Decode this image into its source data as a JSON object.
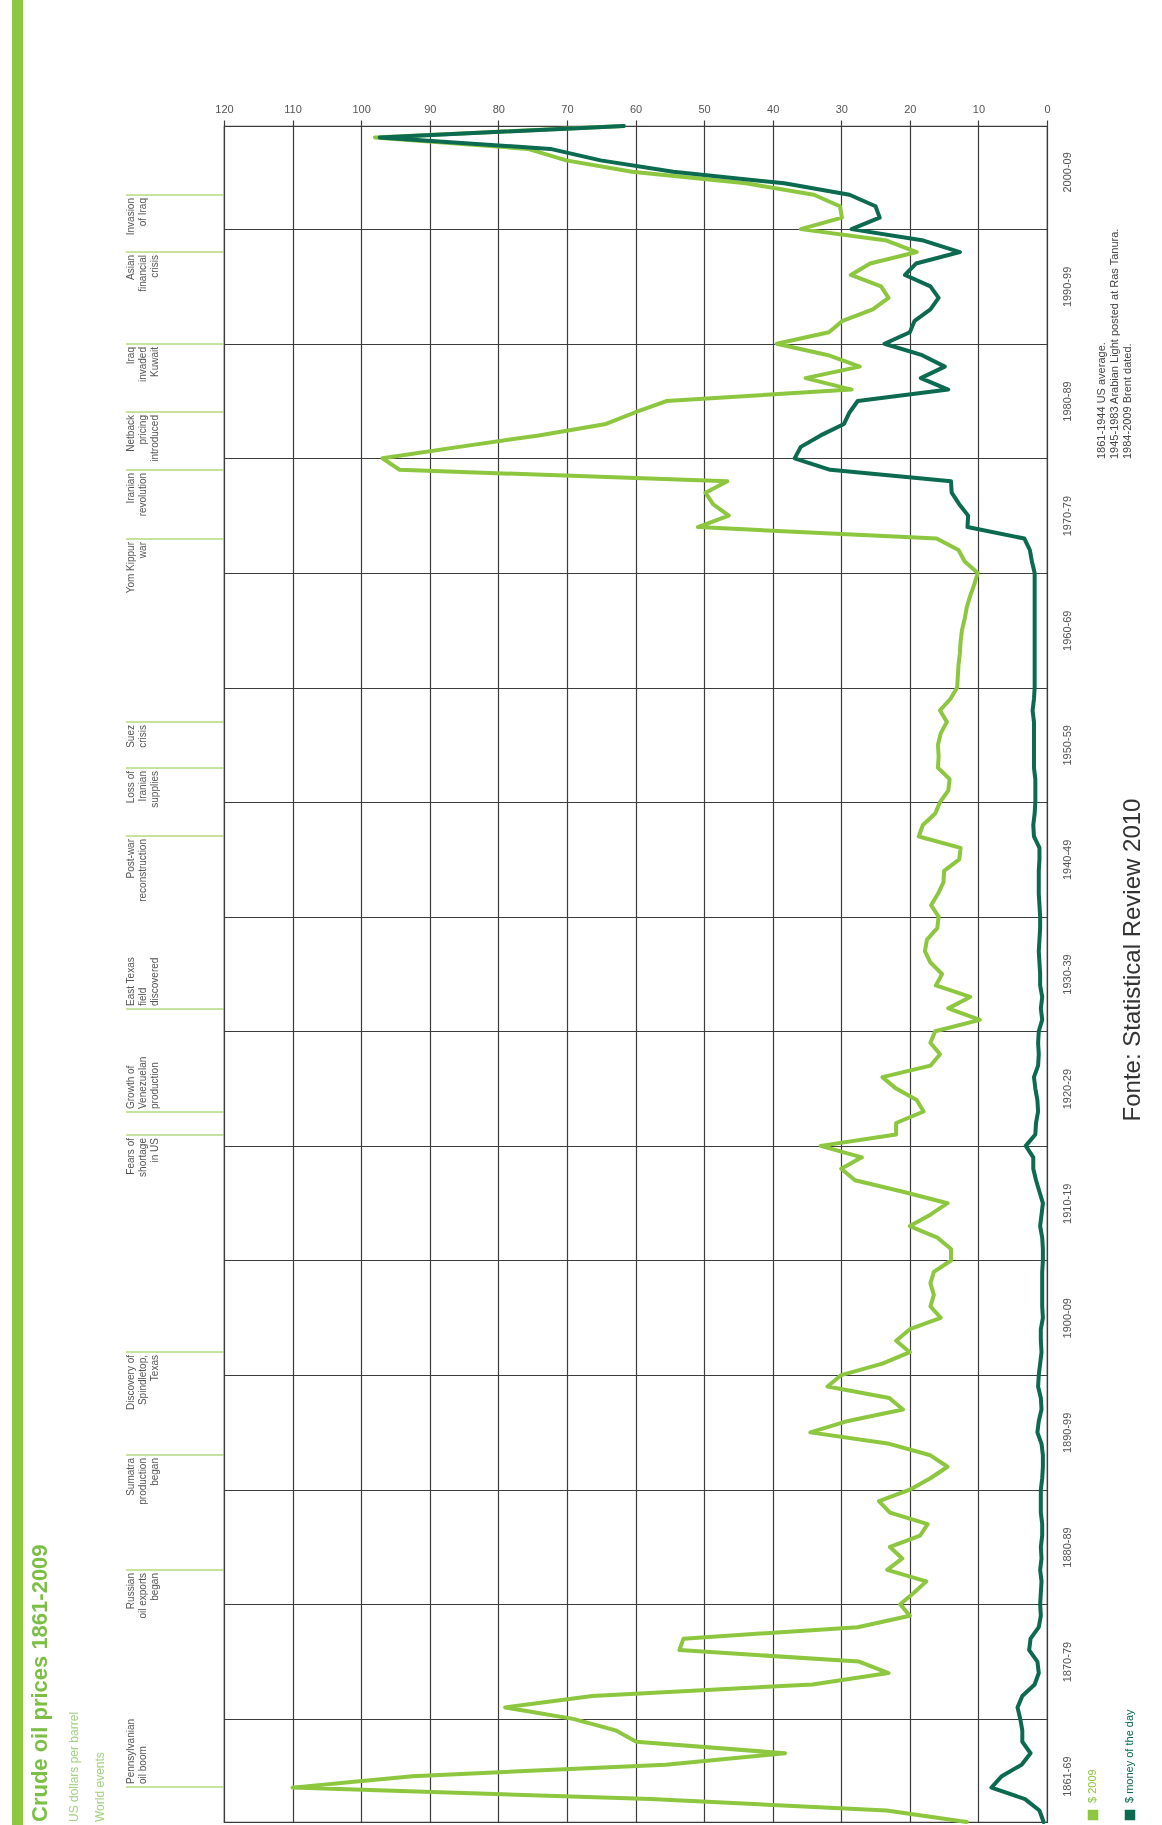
{
  "chart_data": {
    "type": "line",
    "title": "Crude oil prices 1861-2009",
    "subtitle": "US dollars per barrel",
    "orientation": "horizontal",
    "categories": [
      null,
      null,
      null,
      null,
      "2000-09",
      null,
      null,
      null,
      null,
      null,
      null,
      null,
      null,
      null,
      "1990-99",
      null,
      null,
      null,
      null,
      null,
      null,
      null,
      null,
      null,
      "1980-89",
      null,
      null,
      null,
      null,
      null,
      null,
      null,
      null,
      null,
      "1970-79",
      null,
      null,
      null,
      null,
      null,
      null,
      null,
      null,
      null,
      "1960-69",
      null,
      null,
      null,
      null,
      null,
      null,
      null,
      null,
      null,
      "1950-59",
      null,
      null,
      null,
      null,
      null,
      null,
      null,
      null,
      null,
      "1940-49",
      null,
      null,
      null,
      null,
      null,
      null,
      null,
      null,
      null,
      "1930-39",
      null,
      null,
      null,
      null,
      null,
      null,
      null,
      null,
      null,
      "1920-29",
      null,
      null,
      null,
      null,
      null,
      null,
      null,
      null,
      null,
      "1910-19",
      null,
      null,
      null,
      null,
      null,
      null,
      null,
      null,
      null,
      "1900-09",
      null,
      null,
      null,
      null,
      null,
      null,
      null,
      null,
      null,
      "1890-99",
      null,
      null,
      null,
      null,
      null,
      null,
      null,
      null,
      null,
      "1880-89",
      null,
      null,
      null,
      null,
      null,
      null,
      null,
      null,
      null,
      "1870-79",
      null,
      null,
      null,
      null,
      null,
      null,
      null,
      null,
      null,
      "1861-69",
      null,
      null,
      null,
      null
    ],
    "series": [
      {
        "name": "$ 2009",
        "color": "#8dc63f",
        "values": [
          61.7,
          98,
          75.7,
          70.1,
          60.5,
          43.9,
          34,
          30.2,
          29.9,
          35.9,
          23.4,
          19,
          25.8,
          28.6,
          24.2,
          23.1,
          25.4,
          29.8,
          31.8,
          39.4,
          31.9,
          27.3,
          35.2,
          28.5,
          55.5,
          60.1,
          64.3,
          74.1,
          85.7,
          96.9,
          94.4,
          46.6,
          49.8,
          48.7,
          46.4,
          50.9,
          16.1,
          12.9,
          12,
          10.1,
          10.6,
          11.2,
          11.7,
          12,
          12.4,
          12.6,
          12.7,
          12.9,
          13,
          13.1,
          14.1,
          15.6,
          14.6,
          15.5,
          15.9,
          15.8,
          15.9,
          14.2,
          14.4,
          15.6,
          16.3,
          18.1,
          18.7,
          12.6,
          12.8,
          15,
          15.1,
          15.9,
          16.9,
          15.8,
          16,
          17.5,
          17.8,
          17,
          15.3,
          16.2,
          11.2,
          14.4,
          9.8,
          16.3,
          17,
          15.6,
          17,
          24,
          22,
          19,
          18,
          22,
          22,
          33,
          27,
          30,
          28,
          21,
          14.5,
          17,
          20,
          16,
          14,
          14,
          16.5,
          17,
          16.5,
          17,
          15.5,
          20,
          22,
          20,
          24,
          30,
          32,
          23,
          21,
          29,
          34.5,
          23,
          17,
          14.5,
          17,
          20,
          24.5,
          22.9,
          17.4,
          18.5,
          22.9,
          21.1,
          23.3,
          17.6,
          19.4,
          21.4,
          20.0,
          27.6,
          53.0,
          53.6,
          27.4,
          23.1,
          34.2,
          66.3,
          79.0,
          69.1,
          62.9,
          59.9,
          38.2,
          55.6,
          92.5,
          110,
          57.8,
          23.4,
          11.7
        ]
      },
      {
        "name": "$ money of the day",
        "color": "#0b6a50",
        "values": [
          61.7,
          97.3,
          72.4,
          65.1,
          54.5,
          38.3,
          28.8,
          25.0,
          24.4,
          28.5,
          18.0,
          12.7,
          19.1,
          20.7,
          17.0,
          15.8,
          17.0,
          19.3,
          20.0,
          23.7,
          18.2,
          14.9,
          18.4,
          14.4,
          27.6,
          28.8,
          29.6,
          33.0,
          35.9,
          36.8,
          31.6,
          14.0,
          13.9,
          12.8,
          11.5,
          11.6,
          3.3,
          2.5,
          2.2,
          1.8,
          1.8,
          1.8,
          1.8,
          1.8,
          1.8,
          1.8,
          1.8,
          1.8,
          1.8,
          1.8,
          1.9,
          2.1,
          1.9,
          1.9,
          1.9,
          1.9,
          1.9,
          1.7,
          1.7,
          1.7,
          1.8,
          2.0,
          1.9,
          1.1,
          1.1,
          1.2,
          1.2,
          1.2,
          1.1,
          1.0,
          1.0,
          1.1,
          1.2,
          1.1,
          1.0,
          1.0,
          0.7,
          0.9,
          0.7,
          1.2,
          1.3,
          1.2,
          1.3,
          1.9,
          1.7,
          1.4,
          1.3,
          1.6,
          1.7,
          3.1,
          2.0,
          2.0,
          1.6,
          1.1,
          0.6,
          0.8,
          1.0,
          0.7,
          0.6,
          0.6,
          0.7,
          0.7,
          0.7,
          0.7,
          0.6,
          0.9,
          0.9,
          0.8,
          1.0,
          1.2,
          1.3,
          0.9,
          0.8,
          1.2,
          1.4,
          0.8,
          0.6,
          0.6,
          0.7,
          0.9,
          0.9,
          0.9,
          0.7,
          0.7,
          0.9,
          0.8,
          1.0,
          0.8,
          0.9,
          1.0,
          0.9,
          1.2,
          2.4,
          2.6,
          1.4,
          1.2,
          1.8,
          3.6,
          4.3,
          3.9,
          3.6,
          3.6,
          2.4,
          3.7,
          6.6,
          8.1,
          3.2,
          1.1,
          0.5
        ]
      }
    ],
    "xlim": [
      120,
      0
    ],
    "xticks": [
      120,
      110,
      100,
      90,
      80,
      70,
      60,
      50,
      40,
      30,
      20,
      10,
      0
    ],
    "grid": true,
    "legend": "bottom right",
    "annotations": [
      "World events",
      "Pennsylvanian\noil boom",
      "Russian\noil exports\nbegan",
      "Sumatra\nproduction\nbegan",
      "Discovery of\nSpindletop,\nTexas",
      "Fears of\nshortage\nin US",
      "Growth of\nVenezuelan\nproduction",
      "East Texas\nfield\ndiscovered",
      "Post-war\nreconstruction",
      "Loss of\nIranian\nsupplies",
      "Suez\ncrisis",
      "Yom Kippur\nwar",
      "Iranian\nrevolution",
      "Netback\npricing\nintroduced",
      "Iraq\ninvaded\nKuwait",
      "Asian\nfinancial\ncrisis",
      "Invasion\nof Iraq",
      "1861-1944 US average.\n1945-1983 Arabian Light posted at Ras Tanura.\n1984-2009 Brent dated.",
      "Fonte: Statistical Review 2010"
    ]
  }
}
